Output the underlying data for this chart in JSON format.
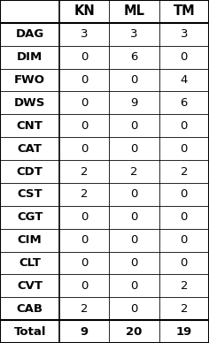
{
  "col_headers": [
    "",
    "KN",
    "ML",
    "TM"
  ],
  "rows": [
    [
      "DAG",
      "3",
      "3",
      "3"
    ],
    [
      "DIM",
      "0",
      "6",
      "0"
    ],
    [
      "FWO",
      "0",
      "0",
      "4"
    ],
    [
      "DWS",
      "0",
      "9",
      "6"
    ],
    [
      "CNT",
      "0",
      "0",
      "0"
    ],
    [
      "CAT",
      "0",
      "0",
      "0"
    ],
    [
      "CDT",
      "2",
      "2",
      "2"
    ],
    [
      "CST",
      "2",
      "0",
      "0"
    ],
    [
      "CGT",
      "0",
      "0",
      "0"
    ],
    [
      "CIM",
      "0",
      "0",
      "0"
    ],
    [
      "CLT",
      "0",
      "0",
      "0"
    ],
    [
      "CVT",
      "0",
      "0",
      "2"
    ],
    [
      "CAB",
      "2",
      "0",
      "2"
    ]
  ],
  "total_row": [
    "Total",
    "9",
    "20",
    "19"
  ],
  "bg_color": "#ffffff",
  "line_color": "#000000",
  "font_size": 9.5,
  "header_font_size": 10.5,
  "fig_width": 2.36,
  "fig_height": 3.88,
  "dpi": 100
}
